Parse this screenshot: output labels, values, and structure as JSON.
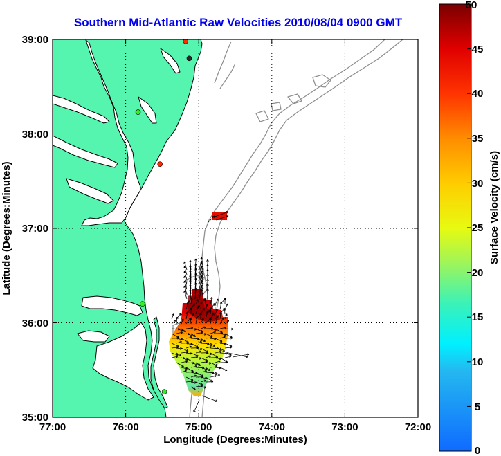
{
  "title": "Southern Mid-Atlantic Raw Velocities 2010/08/04 0900 GMT",
  "x_axis": {
    "label": "Longitude (Degrees:Minutes)",
    "ticks": [
      "77:00",
      "76:00",
      "75:00",
      "74:00",
      "73:00",
      "72:00"
    ]
  },
  "y_axis": {
    "label": "Latitude (Degrees:Minutes)",
    "ticks": [
      "39:00",
      "38:00",
      "37:00",
      "36:00",
      "35:00"
    ]
  },
  "colorbar": {
    "label": "Surface Velocity (cm/s)",
    "ticks": [
      "50",
      "45",
      "40",
      "35",
      "30",
      "25",
      "20",
      "15",
      "10",
      "5",
      "0"
    ]
  },
  "map": {
    "lon_range": [
      -77,
      -72
    ],
    "lat_range": [
      35,
      39
    ],
    "land_color": "#55f5b0",
    "bathymetry_color": "#8f8f8f",
    "grid": "dotted"
  },
  "stations": [
    {
      "lon": -75.18,
      "lat": 38.98,
      "color": "#ff2a00"
    },
    {
      "lon": -75.13,
      "lat": 38.8,
      "color": "#2a2a2a"
    },
    {
      "lon": -75.83,
      "lat": 38.23,
      "color": "#33ee22"
    },
    {
      "lon": -75.53,
      "lat": 37.68,
      "color": "#ff2a00"
    },
    {
      "lon": -75.77,
      "lat": 36.2,
      "color": "#33ee22"
    },
    {
      "lon": -75.47,
      "lat": 35.27,
      "color": "#33ee22"
    }
  ]
}
